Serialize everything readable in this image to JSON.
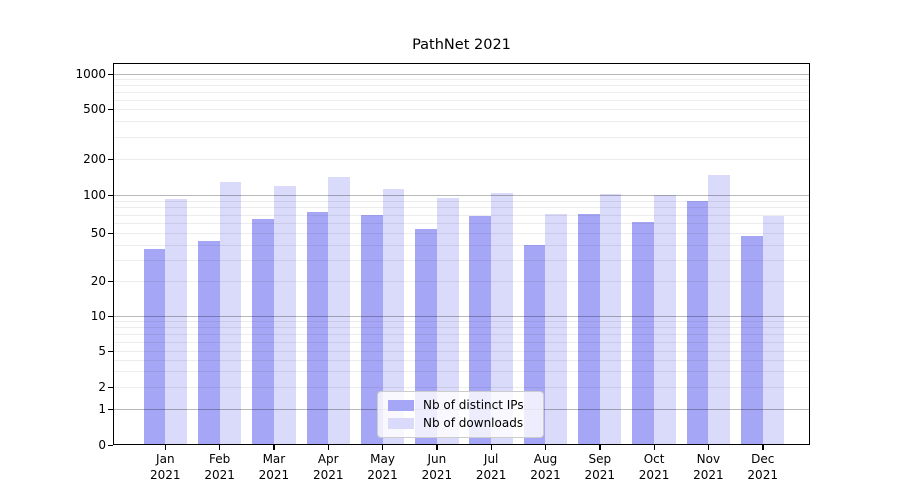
{
  "chart_data": {
    "type": "bar",
    "title": "PathNet 2021",
    "categories": [
      "Jan 2021",
      "Feb 2021",
      "Mar 2021",
      "Apr 2021",
      "May 2021",
      "Jun 2021",
      "Jul 2021",
      "Aug 2021",
      "Sep 2021",
      "Oct 2021",
      "Nov 2021",
      "Dec 2021"
    ],
    "series": [
      {
        "name": "Nb of distinct IPs",
        "color": "#a6a6f7",
        "values": [
          37,
          43,
          65,
          74,
          69,
          54,
          68,
          40,
          71,
          61,
          90,
          47
        ]
      },
      {
        "name": "Nb of downloads",
        "color": "#dadafa",
        "values": [
          94,
          128,
          119,
          143,
          112,
          95,
          105,
          71,
          102,
          100,
          148,
          68
        ]
      }
    ],
    "yscale": "symlog",
    "ylim": [
      0,
      1000
    ],
    "yticks": [
      0,
      1,
      2,
      5,
      10,
      20,
      50,
      100,
      200,
      500,
      1000
    ],
    "xlabel": "",
    "ylabel": "",
    "grid": true,
    "legend_position": "lower center"
  },
  "x_axis": {
    "months": [
      "Jan",
      "Feb",
      "Mar",
      "Apr",
      "May",
      "Jun",
      "Jul",
      "Aug",
      "Sep",
      "Oct",
      "Nov",
      "Dec"
    ],
    "year": "2021"
  }
}
